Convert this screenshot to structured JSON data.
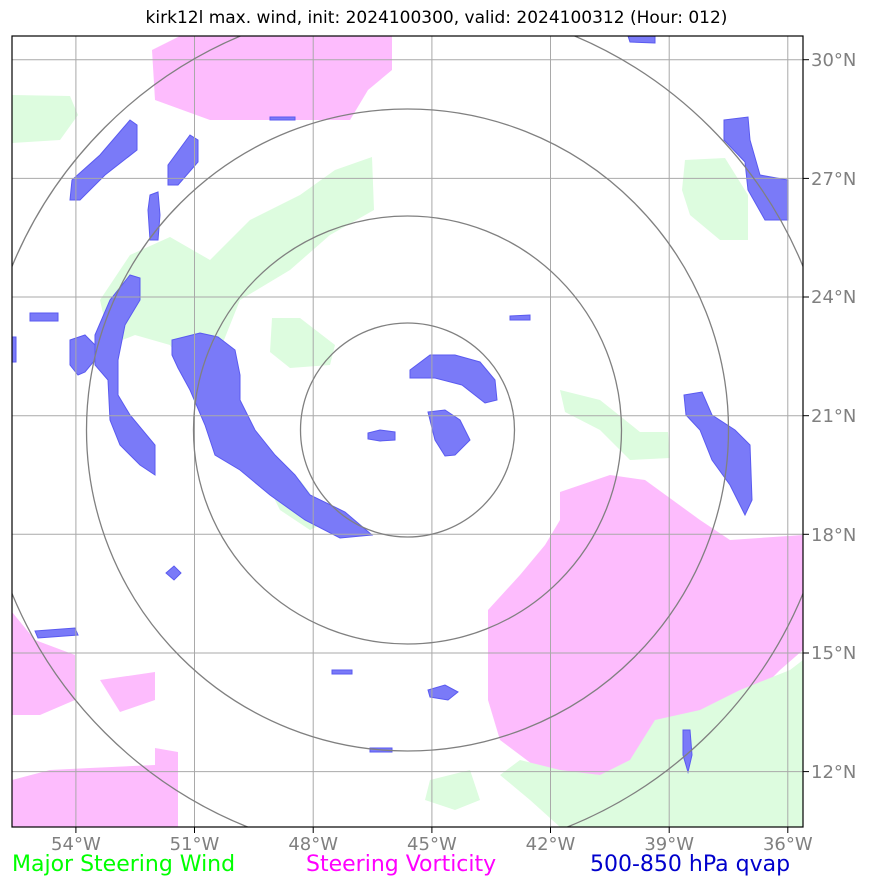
{
  "title": "kirk12l max. wind, init: 2024100300, valid: 2024100312 (Hour: 012)",
  "lon_labels": [
    "54°W",
    "51°W",
    "48°W",
    "45°W",
    "42°W",
    "39°W",
    "36°W"
  ],
  "lat_labels": [
    "30°N",
    "27°N",
    "24°N",
    "21°N",
    "18°N",
    "15°N",
    "12°N"
  ],
  "legend": {
    "wind": {
      "label": "Major Steering Wind",
      "color": "#00ff00"
    },
    "vorticity": {
      "label": "Steering Vorticity",
      "color": "#ff00ff"
    },
    "qvap": {
      "label": "500-850 hPa qvap",
      "color": "#0000cc"
    }
  },
  "map": {
    "lon_range": [
      -55.6,
      -35.6
    ],
    "lat_range": [
      10.6,
      30.6
    ],
    "center": {
      "lon": -45.6,
      "lat": 20.8
    },
    "range_rings_deg": [
      2.7,
      5.4,
      8.1,
      10.8
    ],
    "colors": {
      "wind_fill": "#ddfcdf",
      "vorticity_fill": "#fdbcfd",
      "qvap_fill": "#7a7af8",
      "grid": "#a9a9a9",
      "ring": "#808080",
      "frame": "#000000",
      "tick_label": "#808080"
    }
  }
}
